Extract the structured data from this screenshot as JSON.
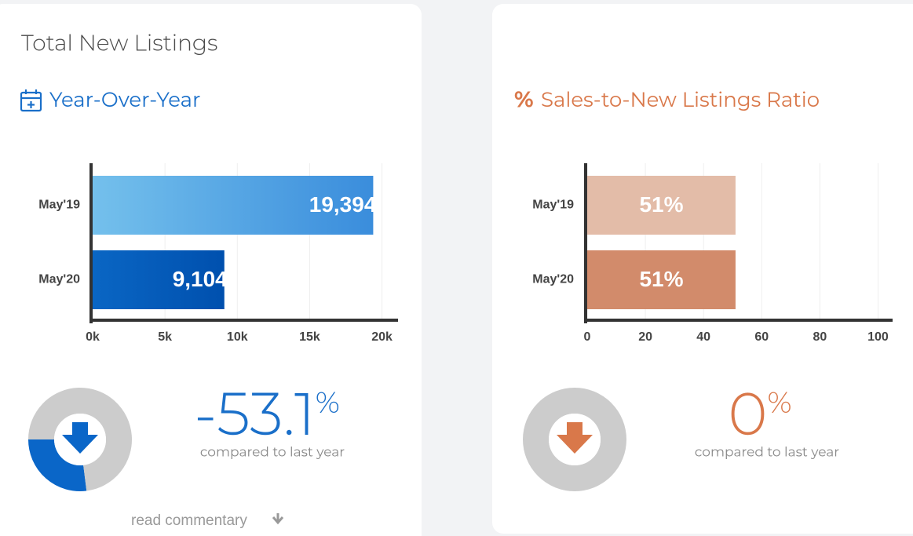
{
  "cards": [
    {
      "title": "Total New Listings",
      "subtitle": "Year-Over-Year",
      "change": "-53.1",
      "change_unit": "%",
      "caption": "compared to last year",
      "link": "read commentary"
    },
    {
      "icon": "%",
      "subtitle": "Sales-to-New Listings Ratio",
      "change": "0",
      "change_unit": "%",
      "caption": "compared to last year"
    }
  ],
  "chart_data": [
    {
      "type": "bar",
      "orientation": "horizontal",
      "categories": [
        "May'19",
        "May'20"
      ],
      "values": [
        19394,
        9104
      ],
      "value_labels": [
        "19,394",
        "9,104"
      ],
      "colors": [
        [
          "#74c0ec",
          "#3a8ddc"
        ],
        [
          "#0a66c4",
          "#0050ae"
        ]
      ],
      "xlim": [
        0,
        21000
      ],
      "xticks": [
        {
          "value": 0,
          "label": "0k"
        },
        {
          "value": 5000,
          "label": "5k"
        },
        {
          "value": 10000,
          "label": "10k"
        },
        {
          "value": 15000,
          "label": "15k"
        },
        {
          "value": 20000,
          "label": "20k"
        }
      ],
      "grid": true
    },
    {
      "type": "bar",
      "orientation": "horizontal",
      "categories": [
        "May'19",
        "May'20"
      ],
      "values": [
        51,
        51
      ],
      "value_labels": [
        "51%",
        "51%"
      ],
      "colors": [
        [
          "#e3bca8",
          "#e3bca8"
        ],
        [
          "#d28b6b",
          "#d28b6b"
        ]
      ],
      "xlim": [
        0,
        105
      ],
      "xticks": [
        0,
        20,
        40,
        60,
        80,
        100
      ],
      "grid": true
    },
    {
      "type": "donut",
      "values": [
        27,
        73
      ],
      "colors": [
        "#0a66c8",
        "#cccccc"
      ],
      "arrow_color": "#0a66c8"
    },
    {
      "type": "donut",
      "values": [
        0,
        100
      ],
      "colors": [
        "#d9784a",
        "#cccccc"
      ],
      "arrow_color": "#d9784a"
    }
  ]
}
